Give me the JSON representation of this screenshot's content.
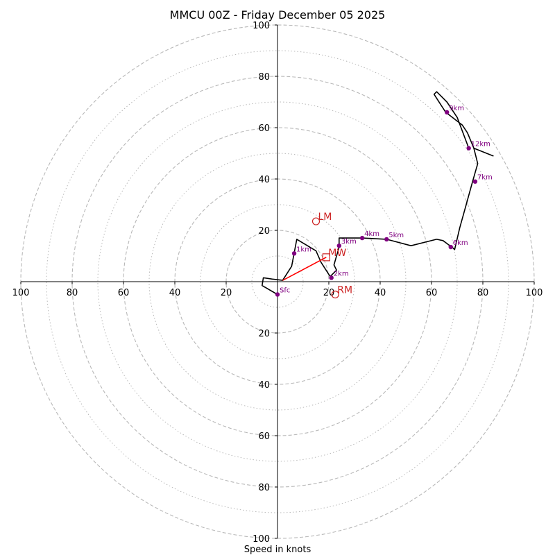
{
  "chart_data": {
    "type": "scatter",
    "title": "MMCU 00Z - Friday December 05 2025",
    "xlabel": "Speed in knots",
    "ylabel": "",
    "xlim": [
      -100,
      100
    ],
    "ylim": [
      -100,
      100
    ],
    "x_tick_values": [
      -100,
      -80,
      -60,
      -40,
      -20,
      20,
      40,
      60,
      80,
      100
    ],
    "x_tick_labels": [
      "100",
      "80",
      "60",
      "40",
      "20",
      "20",
      "40",
      "60",
      "80",
      "100"
    ],
    "y_tick_values": [
      100,
      80,
      60,
      40,
      20,
      -20,
      -40,
      -60,
      -80,
      -100
    ],
    "y_tick_labels": [
      "100",
      "80",
      "60",
      "40",
      "20",
      "20",
      "40",
      "60",
      "80",
      "100"
    ],
    "rings": {
      "dashed": [
        20,
        40,
        60,
        80,
        100
      ],
      "dotted": [
        10,
        30,
        50,
        70,
        90
      ],
      "grid": true
    },
    "colors": {
      "hodograph": "#000000",
      "height_points": "#800080",
      "storm_motion": "#cc2222",
      "shear_vector": "#ff0000",
      "rings": "#b8b8b8",
      "axes": "#000000"
    },
    "series": [
      {
        "x": [
          0,
          -6,
          -5.5,
          -2,
          2,
          5.5,
          7.5,
          15,
          17,
          20.5,
          23,
          22,
          24,
          24,
          33,
          42.5,
          52,
          62,
          64.5,
          66.5,
          68,
          69,
          71,
          73.5,
          76,
          78,
          76.5,
          84,
          76.5,
          74,
          72,
          65.5,
          61,
          62,
          66,
          70,
          74.5
        ],
        "y": [
          -5,
          -1.5,
          1.5,
          1,
          0.5,
          6,
          16.5,
          12,
          7.5,
          2,
          4.5,
          6.5,
          13.5,
          17,
          17,
          16.5,
          14,
          16.5,
          16,
          14.5,
          13.5,
          12.5,
          21,
          30,
          39,
          46,
          52,
          49,
          52,
          58,
          61,
          66,
          73,
          74,
          70,
          64,
          52
        ]
      }
    ],
    "height_points": [
      {
        "label": "Sfc",
        "x": 0,
        "y": -5
      },
      {
        "label": "1km",
        "x": 6.5,
        "y": 11
      },
      {
        "label": "2km",
        "x": 21,
        "y": 1.5
      },
      {
        "label": "3km",
        "x": 24,
        "y": 14
      },
      {
        "label": "4km",
        "x": 33,
        "y": 17
      },
      {
        "label": "5km",
        "x": 42.5,
        "y": 16.5
      },
      {
        "label": "6km",
        "x": 67.5,
        "y": 13.5
      },
      {
        "label": "7km",
        "x": 77,
        "y": 39
      },
      {
        "label": "12km",
        "x": 74.5,
        "y": 52
      },
      {
        "label": "9km",
        "x": 66,
        "y": 66
      }
    ],
    "storm_motion": [
      {
        "label": "LM",
        "x": 15,
        "y": 23.5,
        "marker": "circle"
      },
      {
        "label": "MW",
        "x": 19,
        "y": 9.5,
        "marker": "square"
      },
      {
        "label": "RM",
        "x": 22.5,
        "y": -5,
        "marker": "circle"
      }
    ],
    "shear_vector": {
      "from": [
        2,
        0.5
      ],
      "to": [
        19,
        9.5
      ]
    }
  }
}
